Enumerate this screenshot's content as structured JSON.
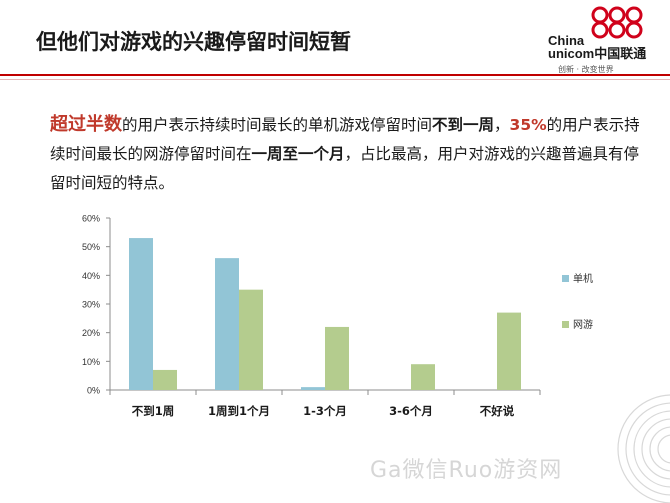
{
  "slide": {
    "title": "但他们对游戏的兴趣停留时间短暂",
    "brand_en_line1": "China",
    "brand_en_line2": "unicom中国联通",
    "brand_slogan": "创新 · 改变世界",
    "watermark": "Ga微信Ruo游资网"
  },
  "paragraph": {
    "seg1": "超过半数",
    "seg2": "的用户表示持续时间最长的单机游戏停留时间",
    "seg3": "不到一周",
    "seg4": "，",
    "seg5": "35%",
    "seg6": "的用户表示持续时间最长的网游停留时间在",
    "seg7": "一周至一个月",
    "seg8": "，占比最高，用户对游戏的兴趣普遍具有停留时间短的特点。"
  },
  "chart_data": {
    "type": "bar",
    "categories": [
      "不到1周",
      "1周到1个月",
      "1-3个月",
      "3-6个月",
      "不好说"
    ],
    "series": [
      {
        "name": "单机",
        "values": [
          53,
          46,
          1,
          0,
          0
        ],
        "color": "#92c5d6"
      },
      {
        "name": "网游",
        "values": [
          7,
          35,
          22,
          9,
          27
        ],
        "color": "#b4cc8e"
      }
    ],
    "yticks": [
      "0%",
      "10%",
      "20%",
      "30%",
      "40%",
      "50%",
      "60%"
    ],
    "ylim": [
      0,
      60
    ],
    "grid": false,
    "legend": "right"
  }
}
